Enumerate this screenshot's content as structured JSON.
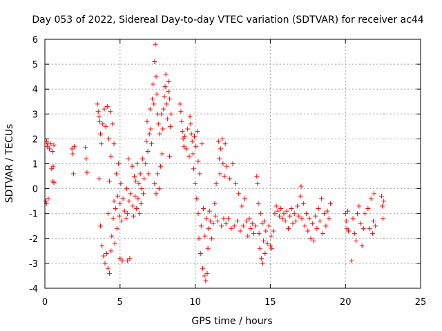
{
  "chart_data": {
    "type": "scatter",
    "title": "Day 053 of 2022, Sidereal Day-to-day VTEC variation (SDTVAR) for receiver ac44",
    "xlabel": "GPS time / hours",
    "ylabel": "SDTVAR / TECUs",
    "xlim": [
      0,
      25
    ],
    "ylim": [
      -4,
      6
    ],
    "xticks": [
      0,
      5,
      10,
      15,
      20,
      25
    ],
    "yticks": [
      -4,
      -3,
      -2,
      -1,
      0,
      1,
      2,
      3,
      4,
      5,
      6
    ],
    "xtick_labels": [
      "0",
      "5",
      "10",
      "15",
      "20",
      "25"
    ],
    "ytick_labels": [
      "-4",
      "-3",
      "-2",
      "-1",
      "0",
      "1",
      "2",
      "3",
      "4",
      "5",
      "6"
    ],
    "grid": true,
    "marker": "+",
    "color": "#ff0000",
    "series": [
      {
        "name": "SDTVAR",
        "points": [
          [
            0.05,
            -0.5
          ],
          [
            0.1,
            -0.6
          ],
          [
            0.12,
            1.9
          ],
          [
            0.15,
            1.7
          ],
          [
            0.2,
            1.8
          ],
          [
            0.22,
            -0.4
          ],
          [
            0.3,
            1.6
          ],
          [
            0.4,
            1.8
          ],
          [
            0.45,
            0.8
          ],
          [
            0.5,
            0.3
          ],
          [
            0.5,
            1.5
          ],
          [
            0.55,
            0.9
          ],
          [
            0.6,
            1.75
          ],
          [
            0.6,
            0.25
          ],
          [
            1.8,
            1.6
          ],
          [
            1.85,
            1.4
          ],
          [
            1.9,
            0.6
          ],
          [
            1.95,
            1.7
          ],
          [
            2.7,
            1.65
          ],
          [
            2.75,
            1.2
          ],
          [
            2.8,
            0.65
          ],
          [
            3.5,
            3.4
          ],
          [
            3.55,
            3.1
          ],
          [
            3.6,
            2.9
          ],
          [
            3.6,
            0.4
          ],
          [
            3.65,
            2.7
          ],
          [
            3.7,
            2.2
          ],
          [
            3.7,
            -1.5
          ],
          [
            3.75,
            1.8
          ],
          [
            3.8,
            -2.3
          ],
          [
            3.85,
            2.6
          ],
          [
            3.9,
            -2.7
          ],
          [
            3.95,
            3.2
          ],
          [
            4.0,
            -3.0
          ],
          [
            4.05,
            2.5
          ],
          [
            4.1,
            -2.6
          ],
          [
            4.15,
            3.3
          ],
          [
            4.2,
            -3.2
          ],
          [
            4.2,
            -1.0
          ],
          [
            4.25,
            2.0
          ],
          [
            4.3,
            -3.4
          ],
          [
            4.3,
            0.3
          ],
          [
            4.35,
            3.1
          ],
          [
            4.4,
            -2.5
          ],
          [
            4.4,
            1.3
          ],
          [
            4.45,
            -1.9
          ],
          [
            4.5,
            2.6
          ],
          [
            4.55,
            -1.2
          ],
          [
            4.6,
            -0.5
          ],
          [
            4.6,
            1.8
          ],
          [
            4.65,
            -2.2
          ],
          [
            4.7,
            -0.8
          ],
          [
            4.75,
            0.6
          ],
          [
            4.8,
            -1.6
          ],
          [
            4.85,
            -0.3
          ],
          [
            4.9,
            1.0
          ],
          [
            4.95,
            -1.1
          ],
          [
            5.0,
            -0.6
          ],
          [
            5.0,
            -2.8
          ],
          [
            5.05,
            0.2
          ],
          [
            5.1,
            -1.3
          ],
          [
            5.15,
            -2.9
          ],
          [
            5.2,
            -0.4
          ],
          [
            5.3,
            -0.9
          ],
          [
            5.4,
            -1.2
          ],
          [
            5.45,
            0.0
          ],
          [
            5.5,
            -1.0
          ],
          [
            5.5,
            -2.9
          ],
          [
            5.55,
            1.2
          ],
          [
            5.6,
            -0.5
          ],
          [
            5.65,
            -2.8
          ],
          [
            5.7,
            -0.2
          ],
          [
            5.8,
            0.9
          ],
          [
            5.85,
            -0.7
          ],
          [
            5.9,
            -1.1
          ],
          [
            5.95,
            0.5
          ],
          [
            6.0,
            -0.3
          ],
          [
            6.05,
            0.3
          ],
          [
            6.1,
            -0.8
          ],
          [
            6.15,
            1.0
          ],
          [
            6.2,
            -0.4
          ],
          [
            6.25,
            0.2
          ],
          [
            6.3,
            -1.0
          ],
          [
            6.35,
            0.6
          ],
          [
            6.4,
            -0.6
          ],
          [
            6.45,
            0.0
          ],
          [
            6.5,
            1.2
          ],
          [
            6.55,
            -0.2
          ],
          [
            6.6,
            0.4
          ],
          [
            6.7,
            1.0
          ],
          [
            6.75,
            1.9
          ],
          [
            6.8,
            2.7
          ],
          [
            6.85,
            1.5
          ],
          [
            6.9,
            0.6
          ],
          [
            6.95,
            2.2
          ],
          [
            7.0,
            3.2
          ],
          [
            7.05,
            2.4
          ],
          [
            7.1,
            1.8
          ],
          [
            7.15,
            3.6
          ],
          [
            7.2,
            4.2
          ],
          [
            7.25,
            3.4
          ],
          [
            7.3,
            0.2
          ],
          [
            7.3,
            5.1
          ],
          [
            7.35,
            5.8
          ],
          [
            7.4,
            4.5
          ],
          [
            7.4,
            -0.2
          ],
          [
            7.45,
            3.8
          ],
          [
            7.5,
            3.0
          ],
          [
            7.5,
            0.6
          ],
          [
            7.55,
            2.6
          ],
          [
            7.6,
            0.0
          ],
          [
            7.65,
            2.2
          ],
          [
            7.7,
            0.9
          ],
          [
            7.75,
            3.0
          ],
          [
            7.8,
            1.4
          ],
          [
            7.85,
            2.4
          ],
          [
            7.9,
            3.2
          ],
          [
            7.95,
            3.7
          ],
          [
            8.0,
            4.1
          ],
          [
            8.05,
            4.6
          ],
          [
            8.1,
            3.4
          ],
          [
            8.15,
            2.8
          ],
          [
            8.2,
            3.9
          ],
          [
            8.25,
            4.3
          ],
          [
            8.3,
            3.6
          ],
          [
            8.3,
            1.3
          ],
          [
            8.35,
            2.5
          ],
          [
            8.4,
            3.0
          ],
          [
            9.0,
            3.4
          ],
          [
            9.05,
            3.1
          ],
          [
            9.1,
            2.7
          ],
          [
            9.15,
            2.3
          ],
          [
            9.2,
            2.0
          ],
          [
            9.25,
            1.7
          ],
          [
            9.3,
            2.1
          ],
          [
            9.4,
            1.6
          ],
          [
            9.5,
            2.4
          ],
          [
            9.6,
            1.3
          ],
          [
            9.65,
            2.9
          ],
          [
            9.7,
            2.6
          ],
          [
            9.75,
            2.2
          ],
          [
            9.8,
            1.9
          ],
          [
            9.85,
            1.4
          ],
          [
            9.9,
            0.8
          ],
          [
            9.95,
            2.1
          ],
          [
            10.0,
            0.2
          ],
          [
            10.05,
            1.7
          ],
          [
            10.1,
            -0.4
          ],
          [
            10.15,
            2.3
          ],
          [
            10.2,
            -1.0
          ],
          [
            10.2,
            1.1
          ],
          [
            10.25,
            -2.0
          ],
          [
            10.3,
            0.6
          ],
          [
            10.35,
            -2.6
          ],
          [
            10.4,
            -1.5
          ],
          [
            10.45,
            1.8
          ],
          [
            10.5,
            -3.2
          ],
          [
            10.55,
            -0.8
          ],
          [
            10.6,
            -3.5
          ],
          [
            10.65,
            -1.9
          ],
          [
            10.7,
            -3.7
          ],
          [
            10.75,
            -1.2
          ],
          [
            10.8,
            -3.4
          ],
          [
            10.85,
            -2.4
          ],
          [
            10.9,
            -1.6
          ],
          [
            10.95,
            -0.9
          ],
          [
            11.0,
            -1.3
          ],
          [
            11.1,
            -2.0
          ],
          [
            11.2,
            -1.4
          ],
          [
            11.3,
            -0.6
          ],
          [
            11.35,
            -1.1
          ],
          [
            11.4,
            0.2
          ],
          [
            11.5,
            -1.3
          ],
          [
            11.55,
            1.9
          ],
          [
            11.6,
            1.2
          ],
          [
            11.65,
            0.6
          ],
          [
            11.7,
            1.6
          ],
          [
            11.75,
            -1.5
          ],
          [
            11.8,
            2.0
          ],
          [
            11.85,
            1.0
          ],
          [
            11.9,
            -1.2
          ],
          [
            11.95,
            0.5
          ],
          [
            12.0,
            1.8
          ],
          [
            12.05,
            -1.4
          ],
          [
            12.1,
            0.9
          ],
          [
            12.2,
            -1.2
          ],
          [
            12.3,
            0.4
          ],
          [
            12.4,
            -1.6
          ],
          [
            12.5,
            1.0
          ],
          [
            12.6,
            -1.5
          ],
          [
            12.7,
            0.2
          ],
          [
            12.8,
            -1.3
          ],
          [
            12.9,
            -0.2
          ],
          [
            13.0,
            -1.7
          ],
          [
            13.1,
            -0.7
          ],
          [
            13.2,
            -1.5
          ],
          [
            13.3,
            -0.4
          ],
          [
            13.4,
            -1.3
          ],
          [
            13.5,
            -1.9
          ],
          [
            13.6,
            -1.2
          ],
          [
            13.7,
            -1.6
          ],
          [
            13.8,
            -1.4
          ],
          [
            13.9,
            -1.8
          ],
          [
            14.0,
            -1.5
          ],
          [
            14.1,
            0.5
          ],
          [
            14.15,
            0.2
          ],
          [
            14.2,
            -0.6
          ],
          [
            14.25,
            -1.8
          ],
          [
            14.3,
            -2.4
          ],
          [
            14.35,
            -1.0
          ],
          [
            14.4,
            -2.8
          ],
          [
            14.45,
            -1.4
          ],
          [
            14.5,
            -3.0
          ],
          [
            14.55,
            -2.1
          ],
          [
            14.6,
            -1.3
          ],
          [
            14.65,
            -2.6
          ],
          [
            14.7,
            -1.7
          ],
          [
            14.8,
            -2.2
          ],
          [
            14.9,
            -1.5
          ],
          [
            15.0,
            -2.3
          ],
          [
            15.05,
            -1.9
          ],
          [
            15.1,
            -2.4
          ],
          [
            15.2,
            -1.7
          ],
          [
            15.3,
            -1.0
          ],
          [
            15.4,
            -0.7
          ],
          [
            15.5,
            -0.9
          ],
          [
            15.6,
            -1.1
          ],
          [
            15.7,
            -0.8
          ],
          [
            15.8,
            -1.2
          ],
          [
            15.9,
            -1.0
          ],
          [
            16.0,
            -1.3
          ],
          [
            16.1,
            -0.9
          ],
          [
            16.2,
            -1.6
          ],
          [
            16.3,
            -1.1
          ],
          [
            16.4,
            -0.8
          ],
          [
            16.5,
            -1.4
          ],
          [
            16.6,
            -1.0
          ],
          [
            16.7,
            -1.3
          ],
          [
            16.8,
            -0.7
          ],
          [
            16.9,
            -1.1
          ],
          [
            17.0,
            -0.3
          ],
          [
            17.05,
            0.1
          ],
          [
            17.1,
            -1.2
          ],
          [
            17.2,
            -0.6
          ],
          [
            17.3,
            -1.5
          ],
          [
            17.4,
            -1.0
          ],
          [
            17.5,
            -1.7
          ],
          [
            17.6,
            -1.2
          ],
          [
            17.7,
            -2.0
          ],
          [
            17.8,
            -1.4
          ],
          [
            17.9,
            -2.1
          ],
          [
            18.0,
            -1.1
          ],
          [
            18.1,
            -1.6
          ],
          [
            18.2,
            -0.8
          ],
          [
            18.3,
            -1.3
          ],
          [
            18.4,
            -0.4
          ],
          [
            18.5,
            -1.8
          ],
          [
            18.6,
            -1.0
          ],
          [
            18.7,
            -1.5
          ],
          [
            18.8,
            -0.9
          ],
          [
            18.9,
            -1.2
          ],
          [
            19.0,
            -0.6
          ],
          [
            20.0,
            -1.0
          ],
          [
            20.05,
            -1.3
          ],
          [
            20.1,
            -1.6
          ],
          [
            20.15,
            -0.9
          ],
          [
            20.2,
            -1.7
          ],
          [
            20.4,
            -2.9
          ],
          [
            20.5,
            -1.2
          ],
          [
            20.6,
            -1.8
          ],
          [
            20.7,
            -2.1
          ],
          [
            20.8,
            -1.0
          ],
          [
            20.9,
            -0.7
          ],
          [
            21.0,
            -1.4
          ],
          [
            21.1,
            -2.3
          ],
          [
            21.2,
            -1.6
          ],
          [
            21.3,
            -1.0
          ],
          [
            21.5,
            -0.8
          ],
          [
            21.6,
            -1.6
          ],
          [
            21.7,
            -0.4
          ],
          [
            21.8,
            -1.8
          ],
          [
            21.85,
            -1.3
          ],
          [
            21.9,
            -0.2
          ],
          [
            22.0,
            -1.5
          ],
          [
            22.4,
            -0.3
          ],
          [
            22.45,
            -0.7
          ],
          [
            22.5,
            -1.2
          ],
          [
            22.55,
            -0.5
          ]
        ]
      }
    ]
  }
}
